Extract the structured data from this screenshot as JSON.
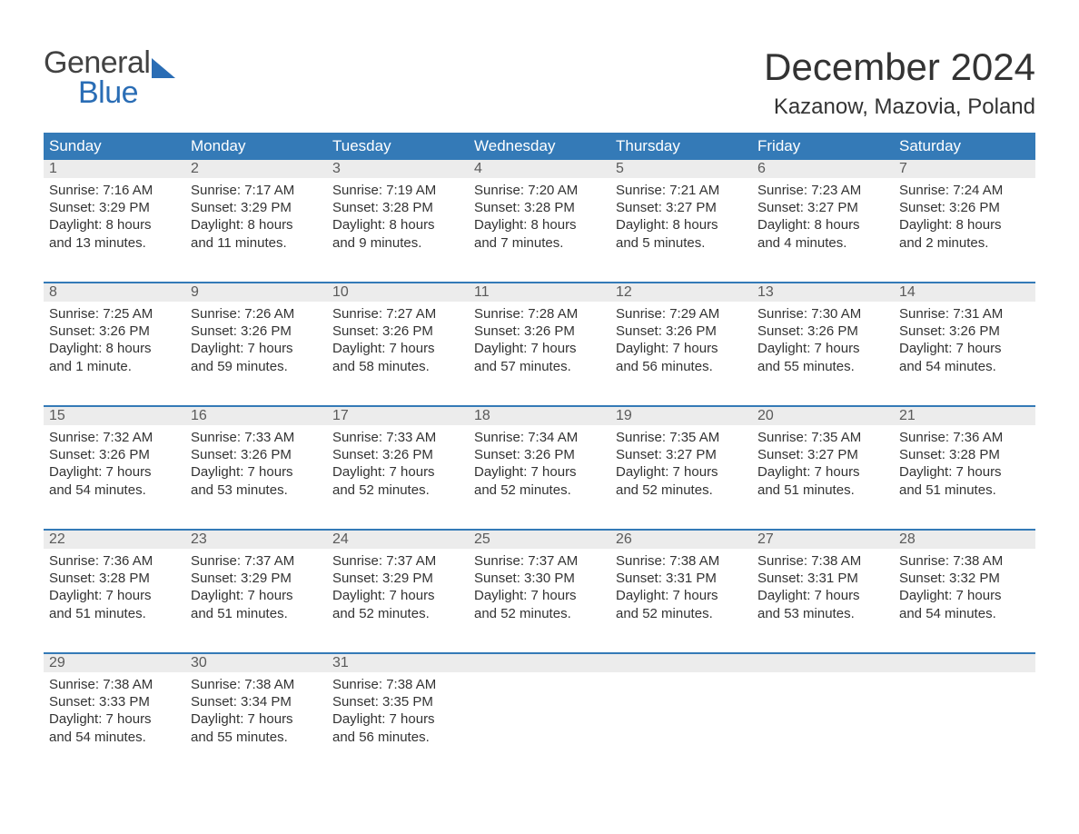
{
  "brand": {
    "part1": "General",
    "part2": "Blue",
    "grayColor": "#424242",
    "blueColor": "#2a6db5"
  },
  "title": "December 2024",
  "location": "Kazanow, Mazovia, Poland",
  "colors": {
    "headerBlue": "#347ab7",
    "dayNumBg": "#ececec",
    "text": "#333333",
    "background": "#ffffff"
  },
  "weekdays": [
    "Sunday",
    "Monday",
    "Tuesday",
    "Wednesday",
    "Thursday",
    "Friday",
    "Saturday"
  ],
  "weeks": [
    [
      {
        "n": "1",
        "sunrise": "Sunrise: 7:16 AM",
        "sunset": "Sunset: 3:29 PM",
        "d1": "Daylight: 8 hours",
        "d2": "and 13 minutes."
      },
      {
        "n": "2",
        "sunrise": "Sunrise: 7:17 AM",
        "sunset": "Sunset: 3:29 PM",
        "d1": "Daylight: 8 hours",
        "d2": "and 11 minutes."
      },
      {
        "n": "3",
        "sunrise": "Sunrise: 7:19 AM",
        "sunset": "Sunset: 3:28 PM",
        "d1": "Daylight: 8 hours",
        "d2": "and 9 minutes."
      },
      {
        "n": "4",
        "sunrise": "Sunrise: 7:20 AM",
        "sunset": "Sunset: 3:28 PM",
        "d1": "Daylight: 8 hours",
        "d2": "and 7 minutes."
      },
      {
        "n": "5",
        "sunrise": "Sunrise: 7:21 AM",
        "sunset": "Sunset: 3:27 PM",
        "d1": "Daylight: 8 hours",
        "d2": "and 5 minutes."
      },
      {
        "n": "6",
        "sunrise": "Sunrise: 7:23 AM",
        "sunset": "Sunset: 3:27 PM",
        "d1": "Daylight: 8 hours",
        "d2": "and 4 minutes."
      },
      {
        "n": "7",
        "sunrise": "Sunrise: 7:24 AM",
        "sunset": "Sunset: 3:26 PM",
        "d1": "Daylight: 8 hours",
        "d2": "and 2 minutes."
      }
    ],
    [
      {
        "n": "8",
        "sunrise": "Sunrise: 7:25 AM",
        "sunset": "Sunset: 3:26 PM",
        "d1": "Daylight: 8 hours",
        "d2": "and 1 minute."
      },
      {
        "n": "9",
        "sunrise": "Sunrise: 7:26 AM",
        "sunset": "Sunset: 3:26 PM",
        "d1": "Daylight: 7 hours",
        "d2": "and 59 minutes."
      },
      {
        "n": "10",
        "sunrise": "Sunrise: 7:27 AM",
        "sunset": "Sunset: 3:26 PM",
        "d1": "Daylight: 7 hours",
        "d2": "and 58 minutes."
      },
      {
        "n": "11",
        "sunrise": "Sunrise: 7:28 AM",
        "sunset": "Sunset: 3:26 PM",
        "d1": "Daylight: 7 hours",
        "d2": "and 57 minutes."
      },
      {
        "n": "12",
        "sunrise": "Sunrise: 7:29 AM",
        "sunset": "Sunset: 3:26 PM",
        "d1": "Daylight: 7 hours",
        "d2": "and 56 minutes."
      },
      {
        "n": "13",
        "sunrise": "Sunrise: 7:30 AM",
        "sunset": "Sunset: 3:26 PM",
        "d1": "Daylight: 7 hours",
        "d2": "and 55 minutes."
      },
      {
        "n": "14",
        "sunrise": "Sunrise: 7:31 AM",
        "sunset": "Sunset: 3:26 PM",
        "d1": "Daylight: 7 hours",
        "d2": "and 54 minutes."
      }
    ],
    [
      {
        "n": "15",
        "sunrise": "Sunrise: 7:32 AM",
        "sunset": "Sunset: 3:26 PM",
        "d1": "Daylight: 7 hours",
        "d2": "and 54 minutes."
      },
      {
        "n": "16",
        "sunrise": "Sunrise: 7:33 AM",
        "sunset": "Sunset: 3:26 PM",
        "d1": "Daylight: 7 hours",
        "d2": "and 53 minutes."
      },
      {
        "n": "17",
        "sunrise": "Sunrise: 7:33 AM",
        "sunset": "Sunset: 3:26 PM",
        "d1": "Daylight: 7 hours",
        "d2": "and 52 minutes."
      },
      {
        "n": "18",
        "sunrise": "Sunrise: 7:34 AM",
        "sunset": "Sunset: 3:26 PM",
        "d1": "Daylight: 7 hours",
        "d2": "and 52 minutes."
      },
      {
        "n": "19",
        "sunrise": "Sunrise: 7:35 AM",
        "sunset": "Sunset: 3:27 PM",
        "d1": "Daylight: 7 hours",
        "d2": "and 52 minutes."
      },
      {
        "n": "20",
        "sunrise": "Sunrise: 7:35 AM",
        "sunset": "Sunset: 3:27 PM",
        "d1": "Daylight: 7 hours",
        "d2": "and 51 minutes."
      },
      {
        "n": "21",
        "sunrise": "Sunrise: 7:36 AM",
        "sunset": "Sunset: 3:28 PM",
        "d1": "Daylight: 7 hours",
        "d2": "and 51 minutes."
      }
    ],
    [
      {
        "n": "22",
        "sunrise": "Sunrise: 7:36 AM",
        "sunset": "Sunset: 3:28 PM",
        "d1": "Daylight: 7 hours",
        "d2": "and 51 minutes."
      },
      {
        "n": "23",
        "sunrise": "Sunrise: 7:37 AM",
        "sunset": "Sunset: 3:29 PM",
        "d1": "Daylight: 7 hours",
        "d2": "and 51 minutes."
      },
      {
        "n": "24",
        "sunrise": "Sunrise: 7:37 AM",
        "sunset": "Sunset: 3:29 PM",
        "d1": "Daylight: 7 hours",
        "d2": "and 52 minutes."
      },
      {
        "n": "25",
        "sunrise": "Sunrise: 7:37 AM",
        "sunset": "Sunset: 3:30 PM",
        "d1": "Daylight: 7 hours",
        "d2": "and 52 minutes."
      },
      {
        "n": "26",
        "sunrise": "Sunrise: 7:38 AM",
        "sunset": "Sunset: 3:31 PM",
        "d1": "Daylight: 7 hours",
        "d2": "and 52 minutes."
      },
      {
        "n": "27",
        "sunrise": "Sunrise: 7:38 AM",
        "sunset": "Sunset: 3:31 PM",
        "d1": "Daylight: 7 hours",
        "d2": "and 53 minutes."
      },
      {
        "n": "28",
        "sunrise": "Sunrise: 7:38 AM",
        "sunset": "Sunset: 3:32 PM",
        "d1": "Daylight: 7 hours",
        "d2": "and 54 minutes."
      }
    ],
    [
      {
        "n": "29",
        "sunrise": "Sunrise: 7:38 AM",
        "sunset": "Sunset: 3:33 PM",
        "d1": "Daylight: 7 hours",
        "d2": "and 54 minutes."
      },
      {
        "n": "30",
        "sunrise": "Sunrise: 7:38 AM",
        "sunset": "Sunset: 3:34 PM",
        "d1": "Daylight: 7 hours",
        "d2": "and 55 minutes."
      },
      {
        "n": "31",
        "sunrise": "Sunrise: 7:38 AM",
        "sunset": "Sunset: 3:35 PM",
        "d1": "Daylight: 7 hours",
        "d2": "and 56 minutes."
      },
      {
        "empty": true
      },
      {
        "empty": true
      },
      {
        "empty": true
      },
      {
        "empty": true
      }
    ]
  ]
}
